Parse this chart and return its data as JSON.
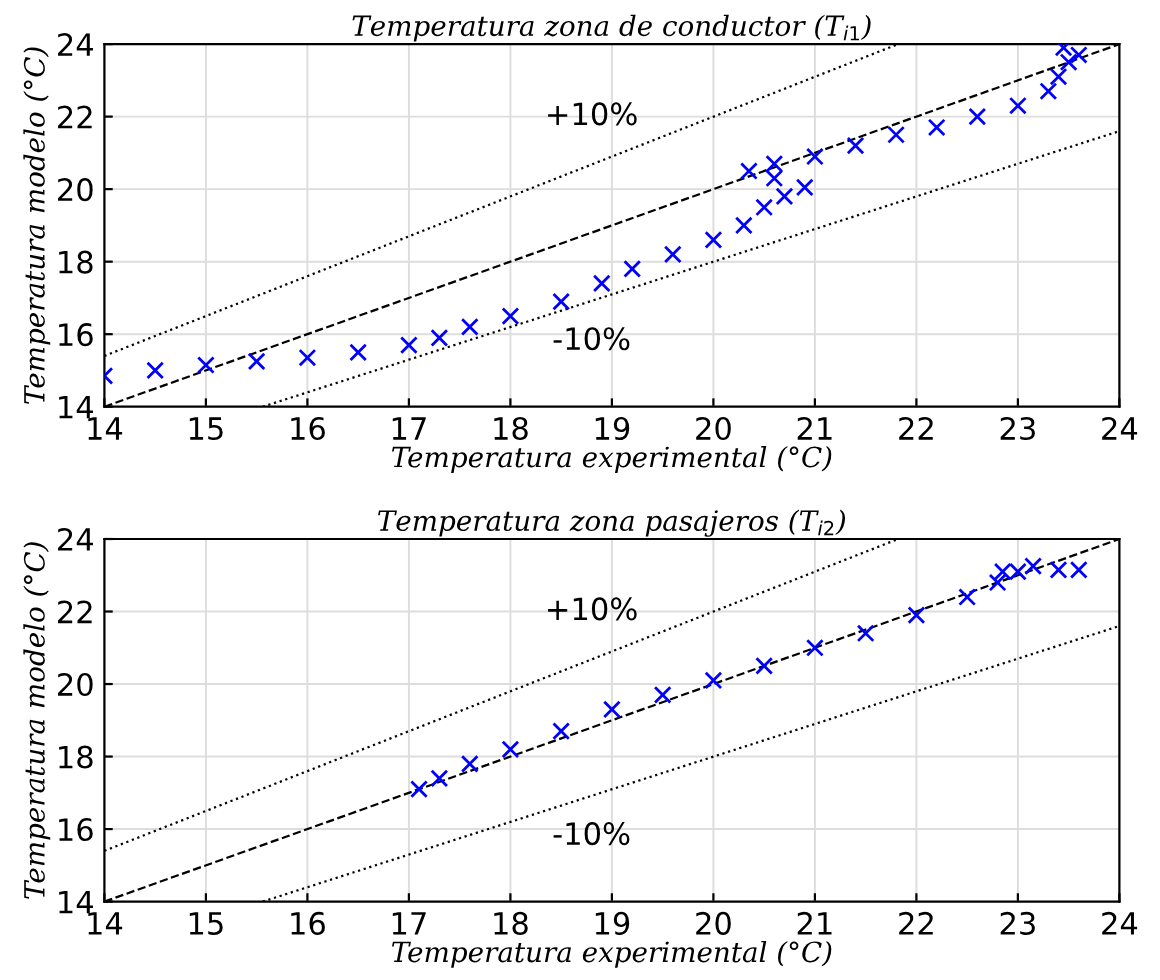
{
  "chart_data": [
    {
      "type": "scatter",
      "title": "Temperatura zona de conductor (T$_{i1}$)",
      "xlabel": "Temperatura experimental (°C)",
      "ylabel": "Temperatura modelo (°C)",
      "xlim": [
        14,
        24
      ],
      "ylim": [
        14,
        24
      ],
      "xticks": [
        14,
        15,
        16,
        17,
        18,
        19,
        20,
        21,
        22,
        23,
        24
      ],
      "yticks": [
        14,
        16,
        18,
        20,
        22,
        24
      ],
      "grid": true,
      "annotations": [
        "+10%",
        "-10%"
      ],
      "series": [
        {
          "marker": "cross",
          "color": "#0000ff",
          "x": [
            14,
            14.5,
            15,
            15.5,
            16,
            16.5,
            17,
            17.3,
            17.6,
            18,
            18.5,
            18.9,
            19.2,
            19.6,
            20,
            20.3,
            20.5,
            20.7,
            20.9,
            20.6,
            20.35,
            20.6,
            21,
            21.4,
            21.8,
            22.2,
            22.6,
            23,
            23.3,
            23.4,
            23.5,
            23.6,
            23.45
          ],
          "values": [
            14.85,
            15.0,
            15.15,
            15.25,
            15.35,
            15.5,
            15.7,
            15.9,
            16.2,
            16.5,
            16.9,
            17.4,
            17.8,
            18.2,
            18.6,
            19.0,
            19.5,
            19.8,
            20.05,
            20.3,
            20.5,
            20.7,
            20.9,
            21.2,
            21.5,
            21.7,
            22.0,
            22.3,
            22.7,
            23.1,
            23.5,
            23.7,
            23.9
          ]
        },
        {
          "type": "line",
          "line_style": "dashed",
          "color": "#000000",
          "x": [
            14,
            24
          ],
          "values": [
            14,
            24
          ]
        },
        {
          "type": "line",
          "line_style": "dotted",
          "color": "#000000",
          "x": [
            14,
            21.82
          ],
          "values": [
            15.4,
            24
          ]
        },
        {
          "type": "line",
          "line_style": "dotted",
          "color": "#000000",
          "x": [
            15.56,
            24
          ],
          "values": [
            14,
            21.6
          ]
        }
      ]
    },
    {
      "type": "scatter",
      "title": "Temperatura zona pasajeros (T$_{i2}$)",
      "xlabel": "Temperatura experimental (°C)",
      "ylabel": "Temperatura modelo (°C)",
      "xlim": [
        14,
        24
      ],
      "ylim": [
        14,
        24
      ],
      "xticks": [
        14,
        15,
        16,
        17,
        18,
        19,
        20,
        21,
        22,
        23,
        24
      ],
      "yticks": [
        14,
        16,
        18,
        20,
        22,
        24
      ],
      "grid": true,
      "annotations": [
        "+10%",
        "-10%"
      ],
      "series": [
        {
          "marker": "cross",
          "color": "#0000ff",
          "x": [
            17.1,
            17.3,
            17.6,
            18,
            18.5,
            19,
            19.5,
            20,
            20.5,
            21,
            21.5,
            22,
            22.5,
            22.8,
            23,
            23.15,
            23.4,
            23.6,
            22.85
          ],
          "values": [
            17.1,
            17.4,
            17.8,
            18.2,
            18.7,
            19.3,
            19.7,
            20.1,
            20.5,
            21.0,
            21.4,
            21.9,
            22.4,
            22.8,
            23.1,
            23.25,
            23.15,
            23.15,
            23.1
          ]
        },
        {
          "type": "line",
          "line_style": "dashed",
          "color": "#000000",
          "x": [
            14,
            24
          ],
          "values": [
            14,
            24
          ]
        },
        {
          "type": "line",
          "line_style": "dotted",
          "color": "#000000",
          "x": [
            14,
            21.82
          ],
          "values": [
            15.4,
            24
          ]
        },
        {
          "type": "line",
          "line_style": "dotted",
          "color": "#000000",
          "x": [
            15.56,
            24
          ],
          "values": [
            14,
            21.6
          ]
        }
      ]
    }
  ]
}
